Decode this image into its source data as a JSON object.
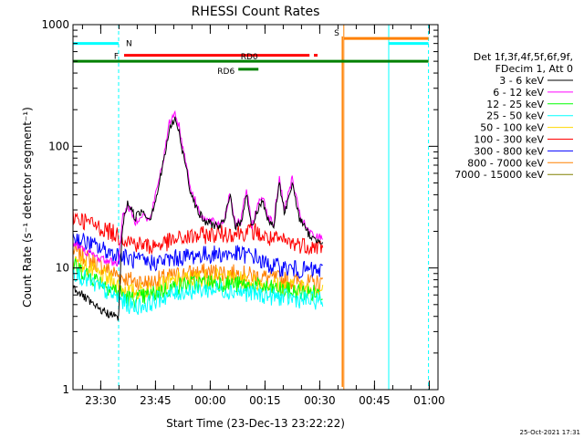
{
  "chart_data": {
    "type": "line",
    "title": "RHESSI Count Rates",
    "xlabel": "Start Time (23-Dec-13 23:22:22)",
    "ylabel": "Count Rate (s⁻¹ detector segment⁻¹)",
    "y_scale": "log",
    "ylim": [
      1,
      1000
    ],
    "y_ticks": [
      1,
      10,
      100,
      1000
    ],
    "y_tick_labels": [
      "1",
      "10",
      "100",
      "1000"
    ],
    "x_unit": "minutes after 23:22:22",
    "xlim": [
      0,
      100
    ],
    "x_ticks": [
      {
        "label": "23:30",
        "x": 7.6
      },
      {
        "label": "23:45",
        "x": 22.6
      },
      {
        "label": "00:00",
        "x": 37.6
      },
      {
        "label": "00:15",
        "x": 52.6
      },
      {
        "label": "00:30",
        "x": 67.6
      },
      {
        "label": "00:45",
        "x": 82.6
      },
      {
        "label": "01:00",
        "x": 97.6
      }
    ],
    "legend": {
      "position": "right",
      "header": [
        "Det 1f,3f,4f,5f,6f,9f,",
        "FDecim 1, Att 0"
      ]
    },
    "series": [
      {
        "name": "3 - 6 keV",
        "color": "#000000",
        "x": [
          0,
          3,
          6,
          9,
          12.5,
          13.5,
          15,
          17,
          19,
          21,
          23,
          25,
          26.5,
          28,
          29,
          30,
          31,
          32,
          34,
          36,
          38,
          40,
          41.5,
          43,
          44.5,
          46,
          47.5,
          49,
          50.5,
          52,
          53.5,
          55,
          56.5,
          58,
          60,
          62,
          64,
          66,
          68.5
        ],
        "y": [
          7,
          5.8,
          4.8,
          4.3,
          3.9,
          22,
          35,
          26,
          30,
          25,
          40,
          80,
          140,
          170,
          130,
          90,
          70,
          45,
          30,
          24,
          23,
          22,
          24,
          40,
          22,
          23,
          42,
          21,
          30,
          36,
          24,
          22,
          50,
          28,
          50,
          26,
          20,
          17,
          17
        ]
      },
      {
        "name": "6 - 12 keV",
        "color": "#ff00ff",
        "x": [
          0,
          3,
          6,
          9,
          12.5,
          13.5,
          15,
          17,
          19,
          21,
          23,
          25,
          26.5,
          28,
          29,
          30,
          31,
          32,
          34,
          36,
          38,
          40,
          41.5,
          43,
          44.5,
          46,
          47.5,
          49,
          50.5,
          52,
          53.5,
          55,
          56.5,
          58,
          60,
          62,
          64,
          66,
          68.5
        ],
        "y": [
          16,
          14,
          12.5,
          11.5,
          11,
          26,
          33,
          24,
          28,
          24,
          45,
          85,
          160,
          190,
          150,
          100,
          75,
          48,
          32,
          25,
          24,
          23,
          25,
          42,
          23,
          24,
          45,
          22,
          32,
          40,
          26,
          23,
          55,
          30,
          55,
          28,
          21,
          18,
          18
        ]
      },
      {
        "name": "12 - 25 keV",
        "color": "#00ff00",
        "x": [
          0,
          5,
          10,
          13,
          16,
          20,
          25,
          30,
          35,
          40,
          45,
          50,
          55,
          60,
          65,
          68.5
        ],
        "y": [
          10.5,
          8.5,
          7,
          6.2,
          5.5,
          5.8,
          6.6,
          7.2,
          7.5,
          7.6,
          7.3,
          7,
          6.7,
          6.4,
          6.2,
          6.2
        ]
      },
      {
        "name": "25 - 50 keV",
        "color": "#00ffff",
        "x": [
          0,
          5,
          10,
          13,
          16,
          20,
          25,
          30,
          35,
          40,
          45,
          50,
          55,
          60,
          65,
          68.5
        ],
        "y": [
          9.5,
          7.5,
          6.2,
          5.5,
          4.8,
          5,
          5.8,
          6.4,
          6.6,
          6.7,
          6.4,
          6.1,
          5.8,
          5.6,
          5.4,
          5.4
        ]
      },
      {
        "name": "50 - 100 keV",
        "color": "#ffd700",
        "x": [
          0,
          5,
          10,
          13,
          16,
          20,
          25,
          30,
          35,
          40,
          45,
          50,
          55,
          60,
          65,
          68.5
        ],
        "y": [
          12,
          9.5,
          8,
          7,
          6.3,
          6.6,
          7.4,
          8,
          8.3,
          8.4,
          8,
          7.6,
          7.2,
          7,
          6.8,
          6.8
        ]
      },
      {
        "name": "100 - 300 keV",
        "color": "#ff0000",
        "x": [
          0,
          5,
          10,
          13,
          17,
          21,
          25,
          30,
          35,
          40,
          45,
          50,
          52,
          55,
          58,
          60,
          63,
          66,
          68.5
        ],
        "y": [
          27,
          23,
          20,
          18,
          16,
          15,
          16,
          17.5,
          18.5,
          19,
          19.5,
          20,
          18,
          17,
          16.5,
          16,
          15.5,
          15,
          15
        ]
      },
      {
        "name": "300 - 800 keV",
        "color": "#0000ff",
        "x": [
          0,
          5,
          10,
          13,
          17,
          21,
          25,
          30,
          35,
          40,
          45,
          50,
          52,
          55,
          58,
          60,
          63,
          66,
          68.5
        ],
        "y": [
          18,
          15.5,
          13.5,
          12.5,
          11.5,
          11,
          11.5,
          12.3,
          12.8,
          13,
          13,
          12.5,
          11,
          10.3,
          10,
          9.8,
          9.6,
          9.5,
          9.5
        ]
      },
      {
        "name": "800 - 7000 keV",
        "color": "#ff8000",
        "x": [
          0,
          5,
          10,
          13,
          17,
          21,
          25,
          30,
          35,
          40,
          45,
          50,
          55,
          60,
          65,
          68.5
        ],
        "y": [
          14,
          11.5,
          9.5,
          8.5,
          7.8,
          7.6,
          8.3,
          8.9,
          9.2,
          9.3,
          9,
          8.6,
          8.2,
          7.8,
          7.5,
          7.5
        ]
      },
      {
        "name": "7000 - 15000 keV",
        "color": "#808000",
        "x": [],
        "y": []
      }
    ],
    "bars": [
      {
        "label": "N",
        "color": "#00ffff",
        "y": 700,
        "segments": [
          [
            0,
            12.5
          ],
          [
            86.5,
            97.4
          ]
        ]
      },
      {
        "label": "F",
        "color": "#ff0000",
        "y": 560,
        "segments": [
          [
            14,
            64.8
          ],
          [
            66,
            67
          ]
        ]
      },
      {
        "label": "RD0",
        "color": "#008000",
        "y": 500,
        "segments": [
          [
            0,
            97.4
          ]
        ]
      },
      {
        "label": "RD6",
        "color": "#008000",
        "y": 430,
        "segments": [
          [
            45.3,
            50.8
          ]
        ]
      },
      {
        "label": "S",
        "color": "#ff8000",
        "y": 770,
        "segments": [
          [
            74.2,
            97.4
          ]
        ]
      }
    ],
    "vertical_lines": [
      {
        "x": 0,
        "color": "#00ffff",
        "style": "solid"
      },
      {
        "x": 12.5,
        "color": "#00ffff",
        "style": "dashed"
      },
      {
        "x": 74.2,
        "color": "#ff8000",
        "style": "solid"
      },
      {
        "x": 86.5,
        "color": "#00ffff",
        "style": "solid"
      },
      {
        "x": 97.4,
        "color": "#00ffff",
        "style": "dashed"
      }
    ]
  },
  "footer": {
    "timestamp": "25-Oct-2021 17:31"
  }
}
